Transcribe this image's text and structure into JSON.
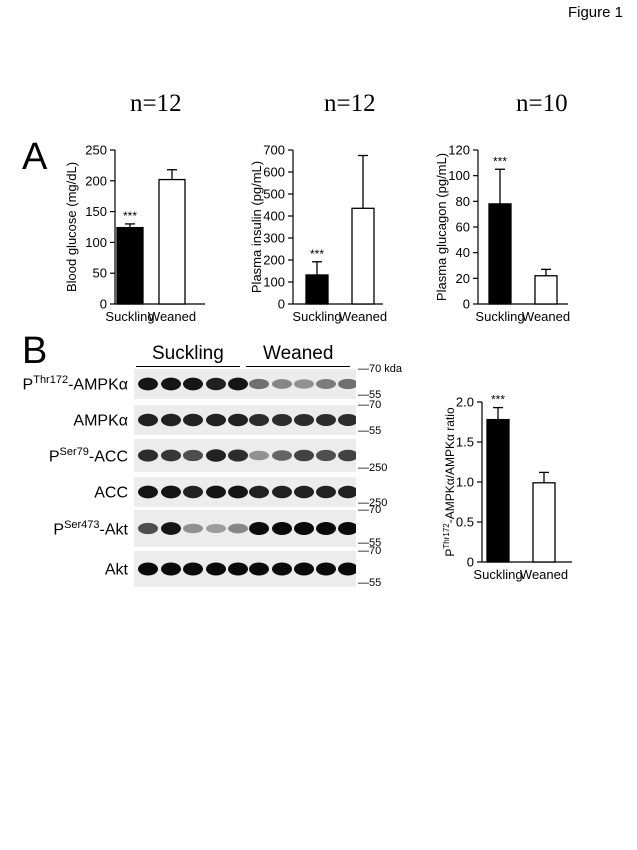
{
  "figure_label": "Figure 1",
  "panel_a": {
    "letter": "A",
    "n_labels": [
      "n=12",
      "n=12",
      "n=10"
    ]
  },
  "panel_b": {
    "letter": "B",
    "lane_groups": [
      "Suckling",
      "Weaned"
    ],
    "blot_rows": [
      {
        "prefix": "P",
        "sup": "Thr172",
        "suffix": "-AMPKα",
        "mw_top": "70 kda",
        "mw_bottom": "55"
      },
      {
        "prefix": "",
        "sup": "",
        "suffix": "AMPKα",
        "mw_top": "70",
        "mw_bottom": "55"
      },
      {
        "prefix": "P",
        "sup": "Ser79",
        "suffix": "-ACC",
        "mw_top": "",
        "mw_bottom": "250"
      },
      {
        "prefix": "",
        "sup": "",
        "suffix": "ACC",
        "mw_top": "",
        "mw_bottom": "250"
      },
      {
        "prefix": "P",
        "sup": "Ser473",
        "suffix": "-Akt",
        "mw_top": "70",
        "mw_bottom": "55"
      },
      {
        "prefix": "",
        "sup": "",
        "suffix": "Akt",
        "mw_top": "70",
        "mw_bottom": "55"
      }
    ],
    "band_intensity": [
      [
        0.95,
        0.95,
        0.95,
        0.9,
        0.95,
        0.55,
        0.45,
        0.4,
        0.5,
        0.55
      ],
      [
        0.9,
        0.9,
        0.9,
        0.9,
        0.9,
        0.85,
        0.85,
        0.85,
        0.85,
        0.85
      ],
      [
        0.85,
        0.8,
        0.7,
        0.9,
        0.85,
        0.4,
        0.6,
        0.75,
        0.7,
        0.75
      ],
      [
        0.95,
        0.95,
        0.9,
        0.95,
        0.95,
        0.9,
        0.9,
        0.9,
        0.9,
        0.9
      ],
      [
        0.7,
        0.95,
        0.4,
        0.35,
        0.45,
        1.0,
        1.0,
        1.0,
        1.0,
        1.0
      ],
      [
        1.0,
        1.0,
        1.0,
        1.0,
        1.0,
        1.0,
        1.0,
        1.0,
        1.0,
        1.0
      ]
    ]
  },
  "chart_data": [
    {
      "type": "bar",
      "categories": [
        "Suckling",
        "Weaned"
      ],
      "values": [
        124,
        202
      ],
      "errors": [
        6,
        16
      ],
      "significance": [
        "***",
        ""
      ],
      "ylabel": "Blood glucose (mg/dL)",
      "ylim": [
        0,
        250
      ],
      "yticks": [
        "0",
        "50",
        "100",
        "150",
        "200",
        "250"
      ],
      "fills": [
        "#000000",
        "#ffffff"
      ]
    },
    {
      "type": "bar",
      "categories": [
        "Suckling",
        "Weaned"
      ],
      "values": [
        132,
        435
      ],
      "errors": [
        60,
        240
      ],
      "significance": [
        "***",
        ""
      ],
      "ylabel": "Plasma insulin (pg/mL)",
      "ylim": [
        0,
        700
      ],
      "yticks": [
        "0",
        "100",
        "200",
        "300",
        "400",
        "500",
        "600",
        "700"
      ],
      "fills": [
        "#000000",
        "#ffffff"
      ]
    },
    {
      "type": "bar",
      "categories": [
        "Suckling",
        "Weaned"
      ],
      "values": [
        78,
        22
      ],
      "errors": [
        27,
        5
      ],
      "significance": [
        "***",
        ""
      ],
      "ylabel": "Plasma glucagon (pg/mL)",
      "ylim": [
        0,
        120
      ],
      "yticks": [
        "0",
        "20",
        "40",
        "60",
        "80",
        "100",
        "120"
      ],
      "fills": [
        "#000000",
        "#ffffff"
      ]
    },
    {
      "type": "bar",
      "categories": [
        "Suckling",
        "Weaned"
      ],
      "values": [
        1.78,
        0.99
      ],
      "errors": [
        0.15,
        0.13
      ],
      "significance": [
        "***",
        ""
      ],
      "ylabel": "P<sup>Thr172</sup>-AMPKα/AMPKα ratio",
      "ylabel_parts": {
        "prefix": "P",
        "sup": "Thr172",
        "suffix": "-AMPKα/AMPKα ratio"
      },
      "ylim": [
        0,
        2.0
      ],
      "yticks": [
        "0",
        "0.5",
        "1.0",
        "1.5",
        "2.0"
      ],
      "fills": [
        "#000000",
        "#ffffff"
      ]
    }
  ]
}
